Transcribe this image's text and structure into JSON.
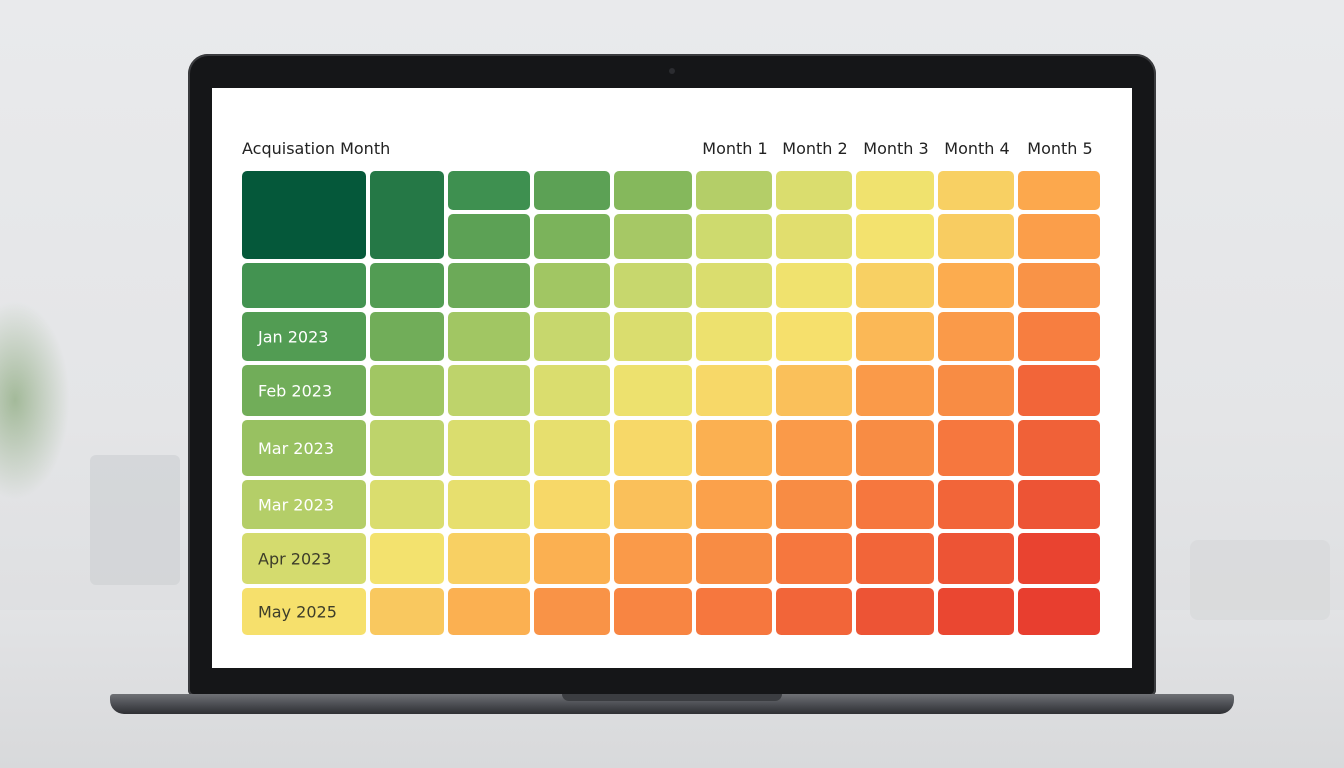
{
  "chart_data": {
    "type": "heatmap",
    "row_header": "Acquisation Month",
    "columns": [
      "",
      "",
      "",
      "",
      "",
      "Month 1",
      "Month 2",
      "Month 3",
      "Month 4",
      "Month 5"
    ],
    "rows": [
      {
        "label": "",
        "values": [
          1.0,
          0.92,
          0.86,
          0.8,
          0.72,
          0.62,
          0.52,
          0.45,
          0.38,
          0.28
        ]
      },
      {
        "label": "",
        "values": [
          1.0,
          0.92,
          0.8,
          0.74,
          0.65,
          0.56,
          0.5,
          0.44,
          0.37,
          0.25
        ]
      },
      {
        "label": "",
        "values": [
          0.85,
          0.82,
          0.77,
          0.66,
          0.58,
          0.52,
          0.45,
          0.38,
          0.29,
          0.22
        ]
      },
      {
        "label": "Jan 2023",
        "values": [
          0.82,
          0.76,
          0.66,
          0.58,
          0.52,
          0.46,
          0.42,
          0.32,
          0.24,
          0.16
        ]
      },
      {
        "label": "Feb 2023",
        "values": [
          0.76,
          0.66,
          0.6,
          0.52,
          0.46,
          0.4,
          0.34,
          0.24,
          0.2,
          0.1
        ]
      },
      {
        "label": "Mar 2023",
        "values": [
          0.68,
          0.6,
          0.52,
          0.48,
          0.4,
          0.3,
          0.24,
          0.2,
          0.14,
          0.09
        ]
      },
      {
        "label": "Mar 2023",
        "values": [
          0.62,
          0.52,
          0.48,
          0.4,
          0.34,
          0.26,
          0.2,
          0.14,
          0.1,
          0.06
        ]
      },
      {
        "label": "Apr 2023",
        "values": [
          0.54,
          0.44,
          0.38,
          0.3,
          0.24,
          0.2,
          0.14,
          0.1,
          0.06,
          0.02
        ]
      },
      {
        "label": "May 2025",
        "values": [
          0.42,
          0.36,
          0.3,
          0.22,
          0.18,
          0.14,
          0.1,
          0.06,
          0.03,
          0.01
        ]
      }
    ],
    "color_scale": [
      "#e73a2e",
      "#f6783e",
      "#fcaa4e",
      "#f6e36e",
      "#cbd96e",
      "#88ba5d",
      "#3f9150",
      "#05583a"
    ],
    "legend": "none",
    "grid": false
  },
  "colors": {
    "screen_background": "#ffffff",
    "header_text": "#222222",
    "label_text_dark": "#ffffff",
    "label_text_light": "#3d3d2a"
  }
}
